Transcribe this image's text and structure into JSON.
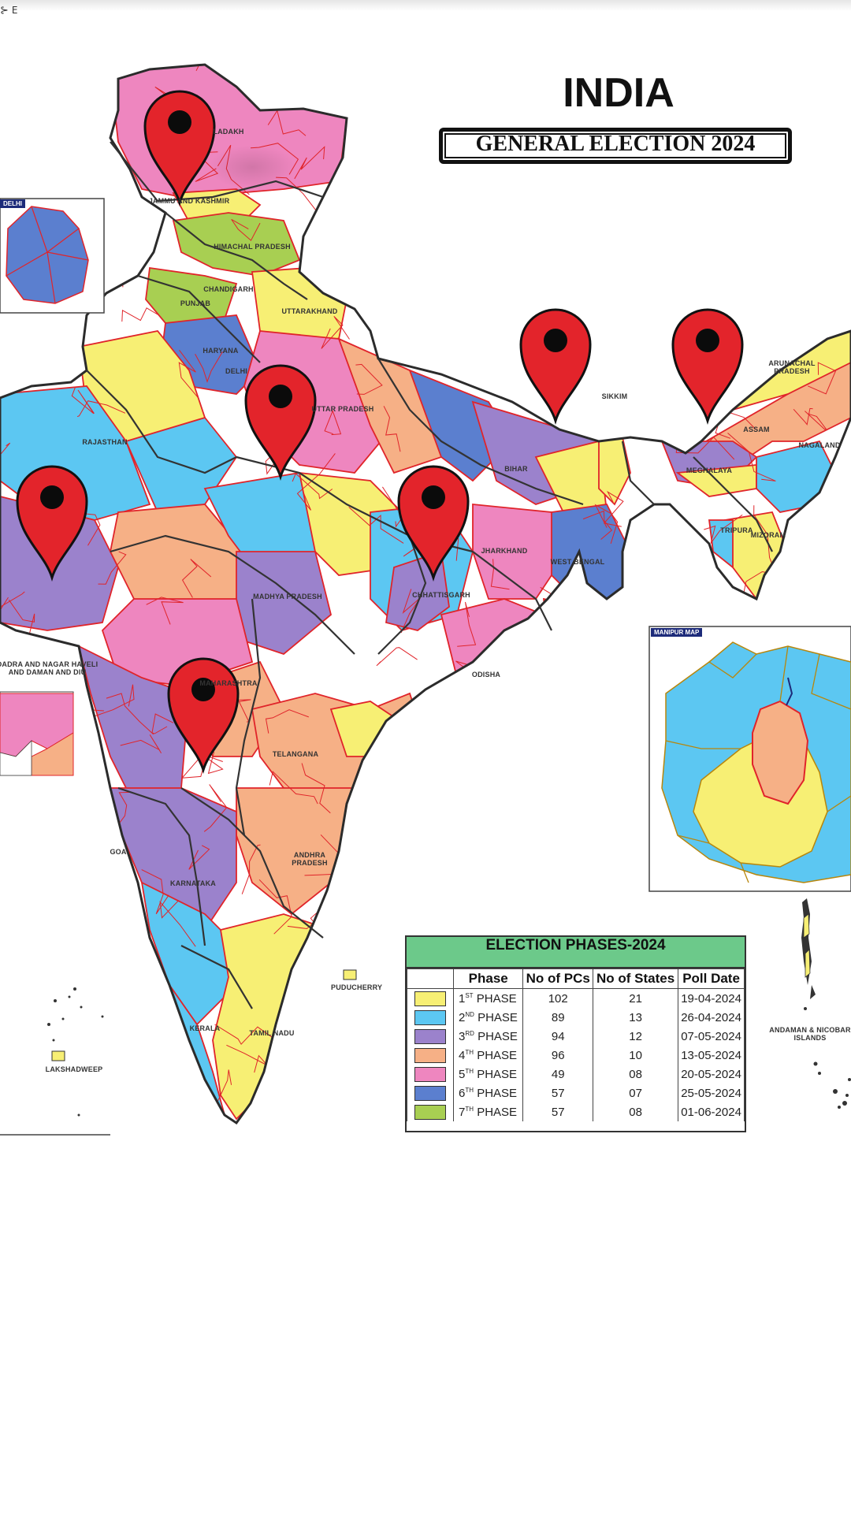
{
  "header": {
    "compass_label": "E"
  },
  "title": {
    "main": "INDIA",
    "subtitle": "GENERAL ELECTION 2024"
  },
  "map": {
    "region_labels": {
      "ladakh": "LADAKH",
      "jammu_kashmir": "JAMMU AND KASHMIR",
      "himachal": "HIMACHAL PRADESH",
      "chandigarh": "CHANDIGARH",
      "punjab": "PUNJAB",
      "uttarakhand": "UTTARAKHAND",
      "haryana": "HARYANA",
      "delhi": "DELHI",
      "uttar_pradesh": "UTTAR PRADESH",
      "rajasthan": "RAJASTHAN",
      "bihar": "BIHAR",
      "sikkim": "SIKKIM",
      "arunachal": "ARUNACHAL PRADESH",
      "assam": "ASSAM",
      "nagaland": "NAGALAND",
      "meghalaya": "MEGHALAYA",
      "tripura": "TRIPURA",
      "mizoram": "MIZORAM",
      "jharkhand": "JHARKHAND",
      "west_bengal": "WEST BENGAL",
      "madhya_pradesh": "MADHYA PRADESH",
      "chhattisgarh": "CHHATTISGARH",
      "odisha": "ODISHA",
      "maharashtra": "MAHARASHTRA",
      "telangana": "TELANGANA",
      "andhra": "ANDHRA PRADESH",
      "karnataka": "KARNATAKA",
      "goa": "GOA",
      "kerala": "KERALA",
      "tamil_nadu": "TAMIL NADU",
      "puducherry": "PUDUCHERRY",
      "lakshadweep": "LAKSHADWEEP",
      "andaman": "ANDAMAN & NICOBAR ISLANDS",
      "dnh_dd": "DADRA AND NAGAR HAVELI AND DAMAN AND DIU",
      "delhi_inset_tag": "DELHI",
      "manipur_inset_tag": "MANIPUR MAP"
    },
    "pins": [
      "jammu-kashmir",
      "uttar-pradesh-west",
      "bihar",
      "assam",
      "gujarat",
      "chhattisgarh",
      "maharashtra"
    ],
    "phase_colors": {
      "p1": "#f7ef74",
      "p2": "#5cc7f2",
      "p3": "#9b82cc",
      "p4": "#f6b086",
      "p5": "#ee86bf",
      "p6": "#5b7fcf",
      "p7": "#a8cf52"
    },
    "border_color": "#e0242a",
    "pin_color": "#e3242b"
  },
  "legend": {
    "title": "ELECTION PHASES-2024",
    "headers": [
      "Phase",
      "No of PCs",
      "No of States",
      "Poll Date"
    ],
    "rows": [
      {
        "num": "1",
        "sup": "ST",
        "label": "PHASE",
        "pcs": "102",
        "states": "21",
        "date": "19-04-2024",
        "color": "#f7ef74"
      },
      {
        "num": "2",
        "sup": "ND",
        "label": "PHASE",
        "pcs": "89",
        "states": "13",
        "date": "26-04-2024",
        "color": "#5cc7f2"
      },
      {
        "num": "3",
        "sup": "RD",
        "label": "PHASE",
        "pcs": "94",
        "states": "12",
        "date": "07-05-2024",
        "color": "#9b82cc"
      },
      {
        "num": "4",
        "sup": "TH",
        "label": "PHASE",
        "pcs": "96",
        "states": "10",
        "date": "13-05-2024",
        "color": "#f6b086"
      },
      {
        "num": "5",
        "sup": "TH",
        "label": "PHASE",
        "pcs": "49",
        "states": "08",
        "date": "20-05-2024",
        "color": "#ee86bf"
      },
      {
        "num": "6",
        "sup": "TH",
        "label": "PHASE",
        "pcs": "57",
        "states": "07",
        "date": "25-05-2024",
        "color": "#5b7fcf"
      },
      {
        "num": "7",
        "sup": "TH",
        "label": "PHASE",
        "pcs": "57",
        "states": "08",
        "date": "01-06-2024",
        "color": "#a8cf52"
      }
    ]
  }
}
